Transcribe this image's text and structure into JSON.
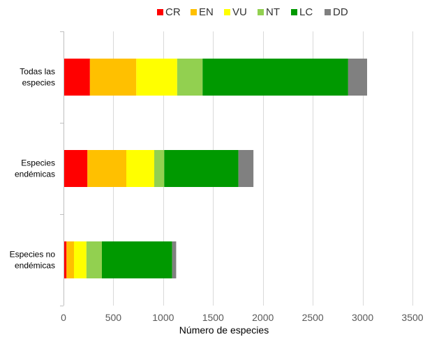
{
  "chart_data": {
    "type": "bar",
    "orientation": "horizontal",
    "stacked": true,
    "categories": [
      [
        "Todas las",
        "especies"
      ],
      [
        "Especies",
        "endémicas"
      ],
      [
        "Especies no",
        "endémicas"
      ]
    ],
    "series": [
      {
        "name": "CR",
        "color": "#ff0000",
        "values": [
          265,
          240,
          30
        ]
      },
      {
        "name": "EN",
        "color": "#ffc000",
        "values": [
          465,
          390,
          75
        ]
      },
      {
        "name": "VU",
        "color": "#ffff00",
        "values": [
          410,
          280,
          125
        ]
      },
      {
        "name": "NT",
        "color": "#92d050",
        "values": [
          255,
          100,
          155
        ]
      },
      {
        "name": "LC",
        "color": "#009900",
        "values": [
          1460,
          745,
          705
        ]
      },
      {
        "name": "DD",
        "color": "#808080",
        "values": [
          190,
          150,
          40
        ]
      }
    ],
    "xlim": [
      0,
      3500
    ],
    "xticks": [
      0,
      500,
      1000,
      1500,
      2000,
      2500,
      3000,
      3500
    ],
    "xlabel": "Número de especies",
    "ylabel": "",
    "title": "",
    "grid": "vertical",
    "legend_position": "top"
  }
}
